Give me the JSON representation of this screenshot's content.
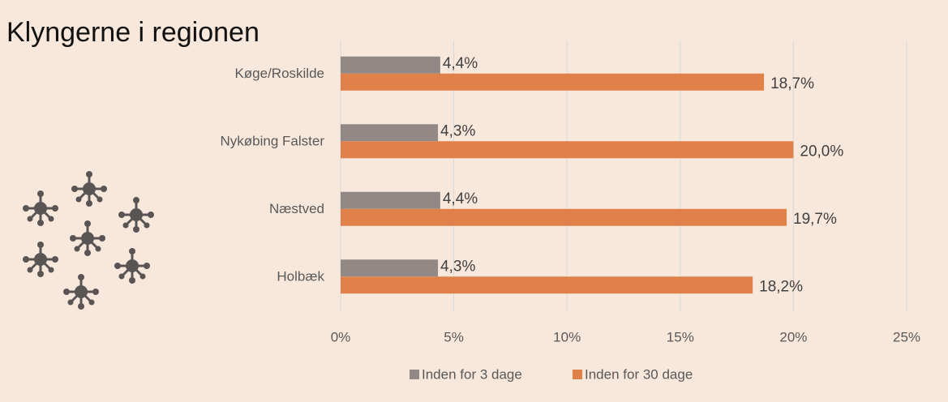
{
  "chart_data": {
    "type": "bar",
    "orientation": "horizontal",
    "title": "Klyngerne i regionen",
    "categories": [
      "Køge/Roskilde",
      "Nykøbing Falster",
      "Næstved",
      "Holbæk"
    ],
    "series": [
      {
        "name": "Inden for 3 dage",
        "color": "#928886",
        "values": [
          4.4,
          4.3,
          4.4,
          4.3
        ],
        "value_labels": [
          "4,4%",
          "4,3%",
          "4,4%",
          "4,3%"
        ]
      },
      {
        "name": "Inden for 30 dage",
        "color": "#e0814a",
        "values": [
          18.7,
          20.0,
          19.7,
          18.2
        ],
        "value_labels": [
          "18,7%",
          "20,0%",
          "19,7%",
          "18,2%"
        ]
      }
    ],
    "xlim": [
      0,
      25
    ],
    "xticks": [
      {
        "value": 0,
        "label": "0%"
      },
      {
        "value": 5,
        "label": "5%"
      },
      {
        "value": 10,
        "label": "10%"
      },
      {
        "value": 15,
        "label": "15%"
      },
      {
        "value": 20,
        "label": "20%"
      },
      {
        "value": 25,
        "label": "25%"
      }
    ],
    "grid": true,
    "legend": "bottom"
  }
}
